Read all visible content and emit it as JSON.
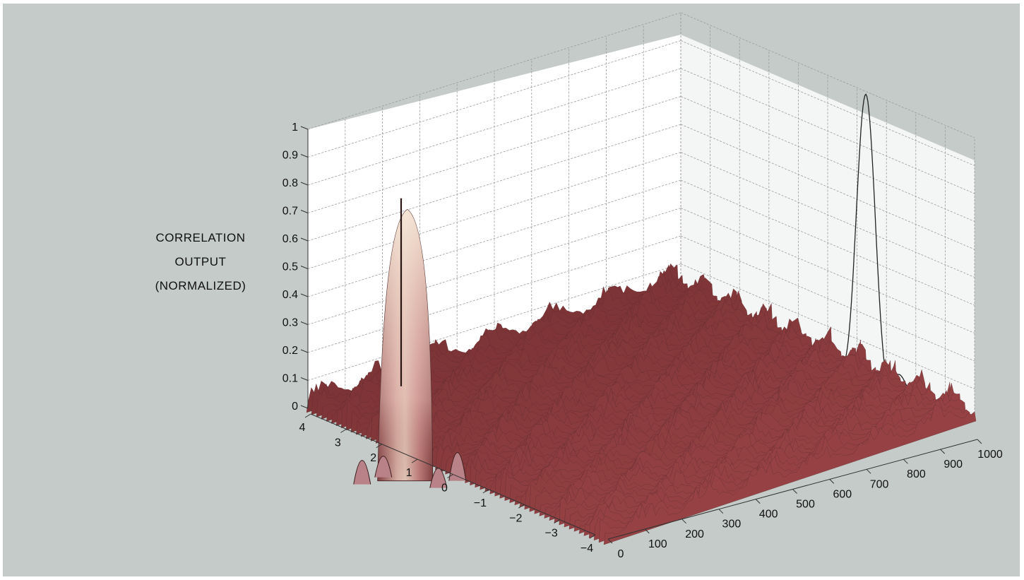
{
  "chart_data": {
    "type": "surface",
    "ylabel_lines": [
      "CORRELATION",
      "OUTPUT",
      "(NORMALIZED)"
    ],
    "z_ticks": [
      "0",
      "0.1",
      "0.2",
      "0.3",
      "0.4",
      "0.5",
      "0.6",
      "0.7",
      "0.8",
      "0.9",
      "1"
    ],
    "zlim": [
      0,
      1
    ],
    "left_axis_ticks": [
      "4",
      "3",
      "2",
      "1",
      "0",
      "−1",
      "−2",
      "−3",
      "−4"
    ],
    "left_axis_range": [
      -4,
      4
    ],
    "right_axis_ticks": [
      "0",
      "100",
      "200",
      "300",
      "400",
      "500",
      "600",
      "700",
      "800",
      "900",
      "1000"
    ],
    "right_axis_range": [
      0,
      1000
    ],
    "grid": true,
    "main_peak": {
      "height": 0.8
    },
    "right_wall_projection_peak": {
      "height": 1.0
    },
    "left_wall_spike": {
      "height": 0.8
    },
    "noise_floor_level": 0.1,
    "colors": {
      "surface": "#7d3f40",
      "peak_top": "#f3e2cf",
      "background": "#c4cbc8",
      "wall": "#ffffff",
      "grid": "#9a9a9a"
    }
  }
}
